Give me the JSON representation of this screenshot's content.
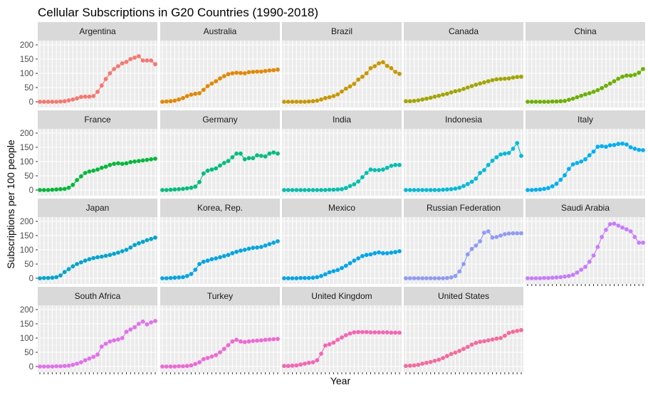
{
  "chart_data": {
    "type": "line",
    "title": "Cellular Subscriptions in G20 Countries (1990-2018)",
    "xlabel": "Year",
    "ylabel": "Subscriptions per 100 people",
    "ylim": [
      0,
      200
    ],
    "yticks": [
      0,
      50,
      100,
      150,
      200
    ],
    "x": [
      1990,
      1991,
      1992,
      1993,
      1994,
      1995,
      1996,
      1997,
      1998,
      1999,
      2000,
      2001,
      2002,
      2003,
      2004,
      2005,
      2006,
      2007,
      2008,
      2009,
      2010,
      2011,
      2012,
      2013,
      2014,
      2015,
      2016,
      2017,
      2018
    ],
    "grid": true,
    "legend": "none",
    "panels": [
      {
        "name": "Argentina",
        "color": "#F8766D",
        "values": [
          0,
          0,
          0,
          0,
          0,
          1,
          2,
          5,
          8,
          12,
          17,
          18,
          18,
          20,
          35,
          57,
          80,
          100,
          115,
          125,
          135,
          140,
          150,
          155,
          160,
          145,
          145,
          145,
          132
        ]
      },
      {
        "name": "Australia",
        "color": "#E58700",
        "values": [
          0,
          1,
          2,
          4,
          8,
          13,
          20,
          25,
          28,
          30,
          42,
          55,
          64,
          72,
          82,
          90,
          97,
          100,
          102,
          101,
          100,
          104,
          105,
          106,
          106,
          108,
          110,
          111,
          113
        ]
      },
      {
        "name": "Brazil",
        "color": "#C99800",
        "values": [
          0,
          0,
          0,
          0,
          0,
          0,
          1,
          2,
          4,
          8,
          13,
          16,
          20,
          26,
          36,
          46,
          54,
          63,
          78,
          88,
          100,
          118,
          125,
          135,
          139,
          126,
          118,
          105,
          98
        ]
      },
      {
        "name": "Canada",
        "color": "#A3A500",
        "values": [
          2,
          2,
          3,
          5,
          8,
          11,
          14,
          18,
          21,
          25,
          28,
          33,
          37,
          40,
          45,
          50,
          55,
          60,
          64,
          68,
          72,
          76,
          79,
          80,
          81,
          82,
          85,
          87,
          88
        ]
      },
      {
        "name": "China",
        "color": "#6BB100",
        "values": [
          0,
          0,
          0,
          0,
          0,
          0,
          1,
          1,
          2,
          3,
          7,
          11,
          16,
          21,
          26,
          30,
          35,
          41,
          48,
          56,
          64,
          72,
          81,
          88,
          92,
          92,
          95,
          102,
          115
        ]
      },
      {
        "name": "France",
        "color": "#00BA38",
        "values": [
          0,
          0,
          0,
          1,
          2,
          3,
          4,
          8,
          18,
          35,
          48,
          60,
          65,
          68,
          72,
          78,
          82,
          88,
          92,
          94,
          92,
          94,
          98,
          100,
          102,
          104,
          106,
          108,
          110
        ]
      },
      {
        "name": "Germany",
        "color": "#00BF7D",
        "values": [
          0,
          0,
          1,
          2,
          3,
          4,
          6,
          8,
          12,
          28,
          58,
          68,
          72,
          76,
          86,
          95,
          102,
          115,
          128,
          128,
          108,
          112,
          112,
          122,
          120,
          118,
          128,
          132,
          128
        ]
      },
      {
        "name": "India",
        "color": "#00C0AF",
        "values": [
          0,
          0,
          0,
          0,
          0,
          0,
          0,
          0,
          0,
          0,
          0,
          1,
          1,
          2,
          3,
          7,
          14,
          20,
          30,
          45,
          60,
          72,
          70,
          70,
          72,
          78,
          85,
          88,
          88
        ]
      },
      {
        "name": "Indonesia",
        "color": "#00BCD8",
        "values": [
          0,
          0,
          0,
          0,
          0,
          0,
          0,
          0,
          0,
          1,
          2,
          3,
          5,
          8,
          14,
          21,
          29,
          40,
          60,
          70,
          88,
          103,
          115,
          125,
          128,
          130,
          145,
          165,
          120
        ]
      },
      {
        "name": "Italy",
        "color": "#00B0F6",
        "values": [
          0,
          0,
          1,
          2,
          4,
          7,
          13,
          22,
          36,
          52,
          74,
          90,
          95,
          100,
          108,
          122,
          135,
          152,
          154,
          152,
          157,
          158,
          162,
          163,
          160,
          150,
          145,
          141,
          140
        ]
      },
      {
        "name": "Japan",
        "color": "#00A5D0",
        "values": [
          0,
          1,
          1,
          2,
          4,
          10,
          22,
          32,
          42,
          50,
          56,
          62,
          67,
          71,
          74,
          76,
          79,
          82,
          86,
          90,
          95,
          100,
          108,
          117,
          123,
          128,
          134,
          138,
          143
        ]
      },
      {
        "name": "Korea, Rep.",
        "color": "#00A6E5",
        "values": [
          0,
          0,
          1,
          2,
          3,
          4,
          8,
          15,
          30,
          50,
          58,
          62,
          67,
          70,
          74,
          78,
          82,
          88,
          93,
          97,
          100,
          104,
          107,
          108,
          110,
          115,
          120,
          125,
          130
        ]
      },
      {
        "name": "Mexico",
        "color": "#00A7F0",
        "values": [
          0,
          0,
          0,
          0,
          1,
          1,
          1,
          2,
          4,
          8,
          14,
          21,
          25,
          29,
          36,
          44,
          53,
          62,
          70,
          78,
          82,
          84,
          88,
          91,
          88,
          88,
          90,
          92,
          95
        ]
      },
      {
        "name": "Russian Federation",
        "color": "#8E9CF5",
        "values": [
          0,
          0,
          0,
          0,
          0,
          0,
          0,
          0,
          0,
          0,
          1,
          3,
          8,
          24,
          50,
          84,
          103,
          115,
          130,
          160,
          165,
          143,
          145,
          150,
          155,
          157,
          158,
          158,
          158
        ]
      },
      {
        "name": "Saudi Arabia",
        "color": "#C77CFF",
        "values": [
          0,
          0,
          0,
          0,
          1,
          1,
          2,
          3,
          4,
          6,
          8,
          12,
          20,
          30,
          40,
          58,
          80,
          110,
          145,
          170,
          190,
          192,
          185,
          178,
          172,
          165,
          145,
          125,
          125
        ]
      },
      {
        "name": "South Africa",
        "color": "#E36EEE",
        "values": [
          0,
          0,
          0,
          0,
          1,
          1,
          2,
          3,
          6,
          10,
          15,
          22,
          28,
          34,
          42,
          70,
          80,
          88,
          92,
          95,
          100,
          122,
          130,
          138,
          150,
          158,
          148,
          155,
          160
        ]
      },
      {
        "name": "Turkey",
        "color": "#F067D6",
        "values": [
          0,
          0,
          0,
          0,
          1,
          1,
          2,
          4,
          9,
          15,
          26,
          30,
          35,
          40,
          50,
          62,
          75,
          88,
          94,
          88,
          86,
          88,
          90,
          91,
          92,
          94,
          95,
          96,
          97
        ]
      },
      {
        "name": "United Kingdom",
        "color": "#F863B4",
        "values": [
          2,
          2,
          3,
          4,
          7,
          10,
          13,
          15,
          22,
          45,
          74,
          78,
          84,
          94,
          102,
          110,
          116,
          120,
          121,
          121,
          121,
          120,
          120,
          120,
          120,
          120,
          119,
          119,
          119
        ]
      },
      {
        "name": "United States",
        "color": "#F8699B",
        "values": [
          2,
          3,
          4,
          6,
          10,
          13,
          16,
          20,
          24,
          30,
          37,
          44,
          49,
          55,
          62,
          69,
          77,
          83,
          87,
          89,
          92,
          95,
          98,
          100,
          108,
          118,
          122,
          125,
          128
        ]
      }
    ]
  }
}
